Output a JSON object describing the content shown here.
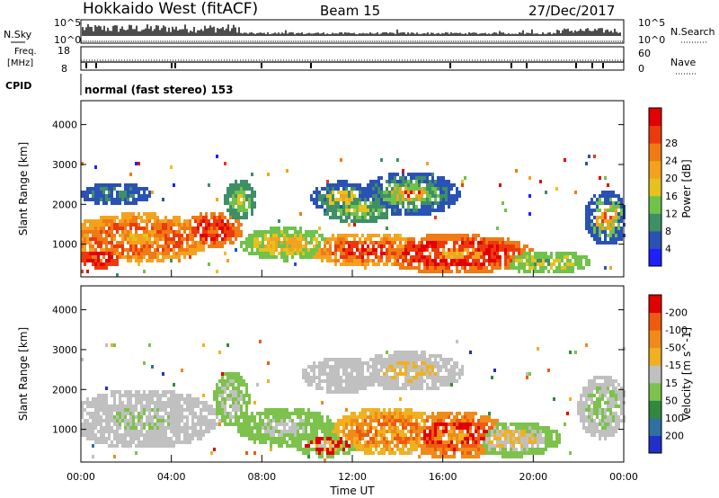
{
  "header": {
    "site": "Hokkaido West (fitACF)",
    "beam": "Beam 15",
    "date": "27/Dec/2017"
  },
  "top_panels": {
    "nsky_label": "N.Sky",
    "nsky_scale_top": "10^5",
    "nsky_scale_bottom": "10^0",
    "nsearch_label": "N.Search",
    "freq_label_1": "Freq.",
    "freq_label_2": "[MHz]",
    "freq_ticks": [
      "18",
      "8"
    ],
    "nave_ticks": [
      "60",
      "0"
    ],
    "nave_label": "Nave",
    "cpid_label": "CPID",
    "cpid_value": "normal (fast stereo) 153"
  },
  "chart_data": [
    {
      "type": "heatmap",
      "ylabel": "Slant Range [km]",
      "y_ticks": [
        1000,
        2000,
        3000,
        4000
      ],
      "ylim": [
        180,
        4600
      ],
      "xlim": [
        "00:00",
        "24:00"
      ],
      "colorbar": {
        "label": "Power [dB]",
        "tick_labels": [
          "4",
          "8",
          "12",
          "16",
          "20",
          "24",
          "28"
        ],
        "colors": [
          "#1e1eff",
          "#2a52b4",
          "#3f8f66",
          "#6fc24a",
          "#e6c21e",
          "#f4a21e",
          "#f07a14",
          "#ec3a0c",
          "#e20000"
        ]
      }
    },
    {
      "type": "heatmap",
      "ylabel": "Slant Range [km]",
      "xlabel": "Time UT",
      "y_ticks": [
        1000,
        2000,
        3000,
        4000
      ],
      "ylim": [
        180,
        4600
      ],
      "xlim": [
        "00:00",
        "24:00"
      ],
      "x_tick_labels": [
        "00:00",
        "04:00",
        "08:00",
        "12:00",
        "16:00",
        "20:00",
        "00:00"
      ],
      "colorbar": {
        "label": "Velocity [m s^-1]",
        "tick_labels": [
          "200",
          "100",
          "50",
          "15",
          "-15",
          "-50",
          "-100",
          "-200"
        ],
        "colors": [
          "#2030c8",
          "#2f70a0",
          "#2f8a3f",
          "#7cc24c",
          "#c0c0c0",
          "#f0b020",
          "#f08a18",
          "#ee5a10",
          "#e00000"
        ]
      }
    }
  ]
}
